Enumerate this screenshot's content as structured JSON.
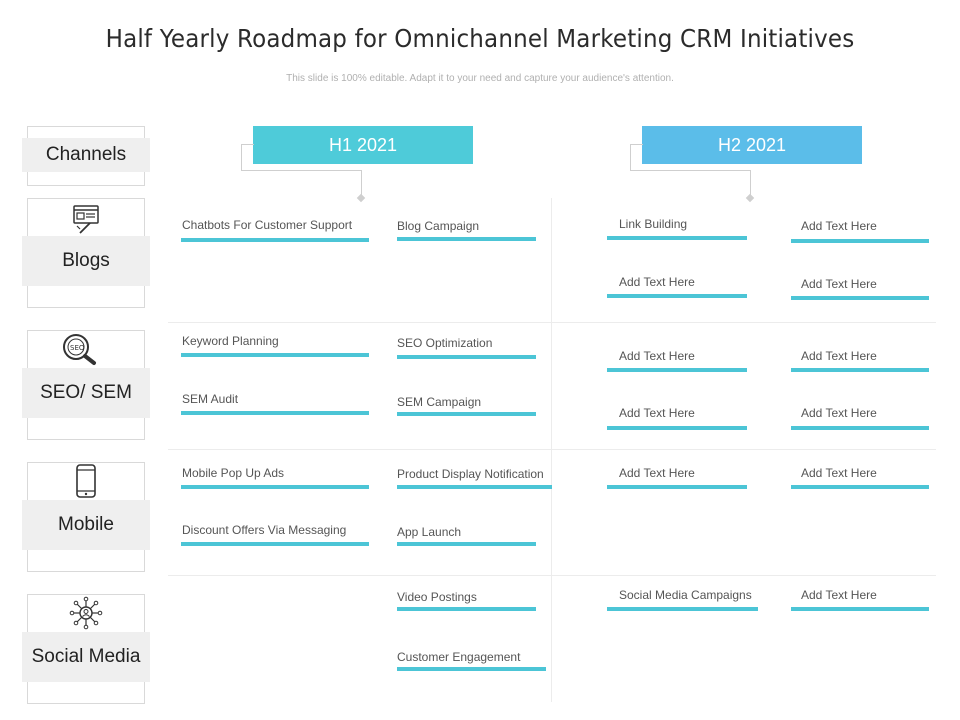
{
  "title": "Half Yearly Roadmap for Omnichannel Marketing CRM Initiatives",
  "subtitle": "This slide is 100% editable. Adapt it to your need and capture your audience's attention.",
  "colors": {
    "h1": "#4ecbd9",
    "h2": "#5bbde9",
    "bar": "#4cc5d6"
  },
  "channels": {
    "header": "Channels",
    "rows": [
      {
        "label": "Blogs",
        "icon": "blog-article-icon"
      },
      {
        "label": "SEO/ SEM",
        "icon": "seo-magnifier-icon"
      },
      {
        "label": "Mobile",
        "icon": "mobile-phone-icon"
      },
      {
        "label": "Social Media",
        "icon": "social-network-icon"
      }
    ]
  },
  "halves": {
    "h1": "H1 2021",
    "h2": "H2 2021"
  },
  "items": {
    "blogs": {
      "h1_a": "Chatbots For Customer Support",
      "h1_b": "Blog Campaign",
      "h2_a1": "Link Building",
      "h2_a2": "Add Text Here",
      "h2_b1": "Add Text Here",
      "h2_b2": "Add Text Here"
    },
    "seo": {
      "h1_a1": "Keyword Planning",
      "h1_a2": "SEM Audit",
      "h1_b1": "SEO Optimization",
      "h1_b2": "SEM Campaign",
      "h2_a1": "Add Text Here",
      "h2_a2": "Add Text Here",
      "h2_b1": "Add Text Here",
      "h2_b2": "Add Text Here"
    },
    "mobile": {
      "h1_a1": "Mobile Pop Up Ads",
      "h1_a2": "Discount Offers Via Messaging",
      "h1_b1": "Product Display Notification",
      "h1_b2": "App Launch",
      "h2_a1": "Add Text Here",
      "h2_b1": "Add Text Here"
    },
    "social": {
      "h1_b1": "Video Postings",
      "h1_b2": "Customer Engagement",
      "h2_a1": "Social Media Campaigns",
      "h2_b1": "Add Text Here"
    }
  }
}
